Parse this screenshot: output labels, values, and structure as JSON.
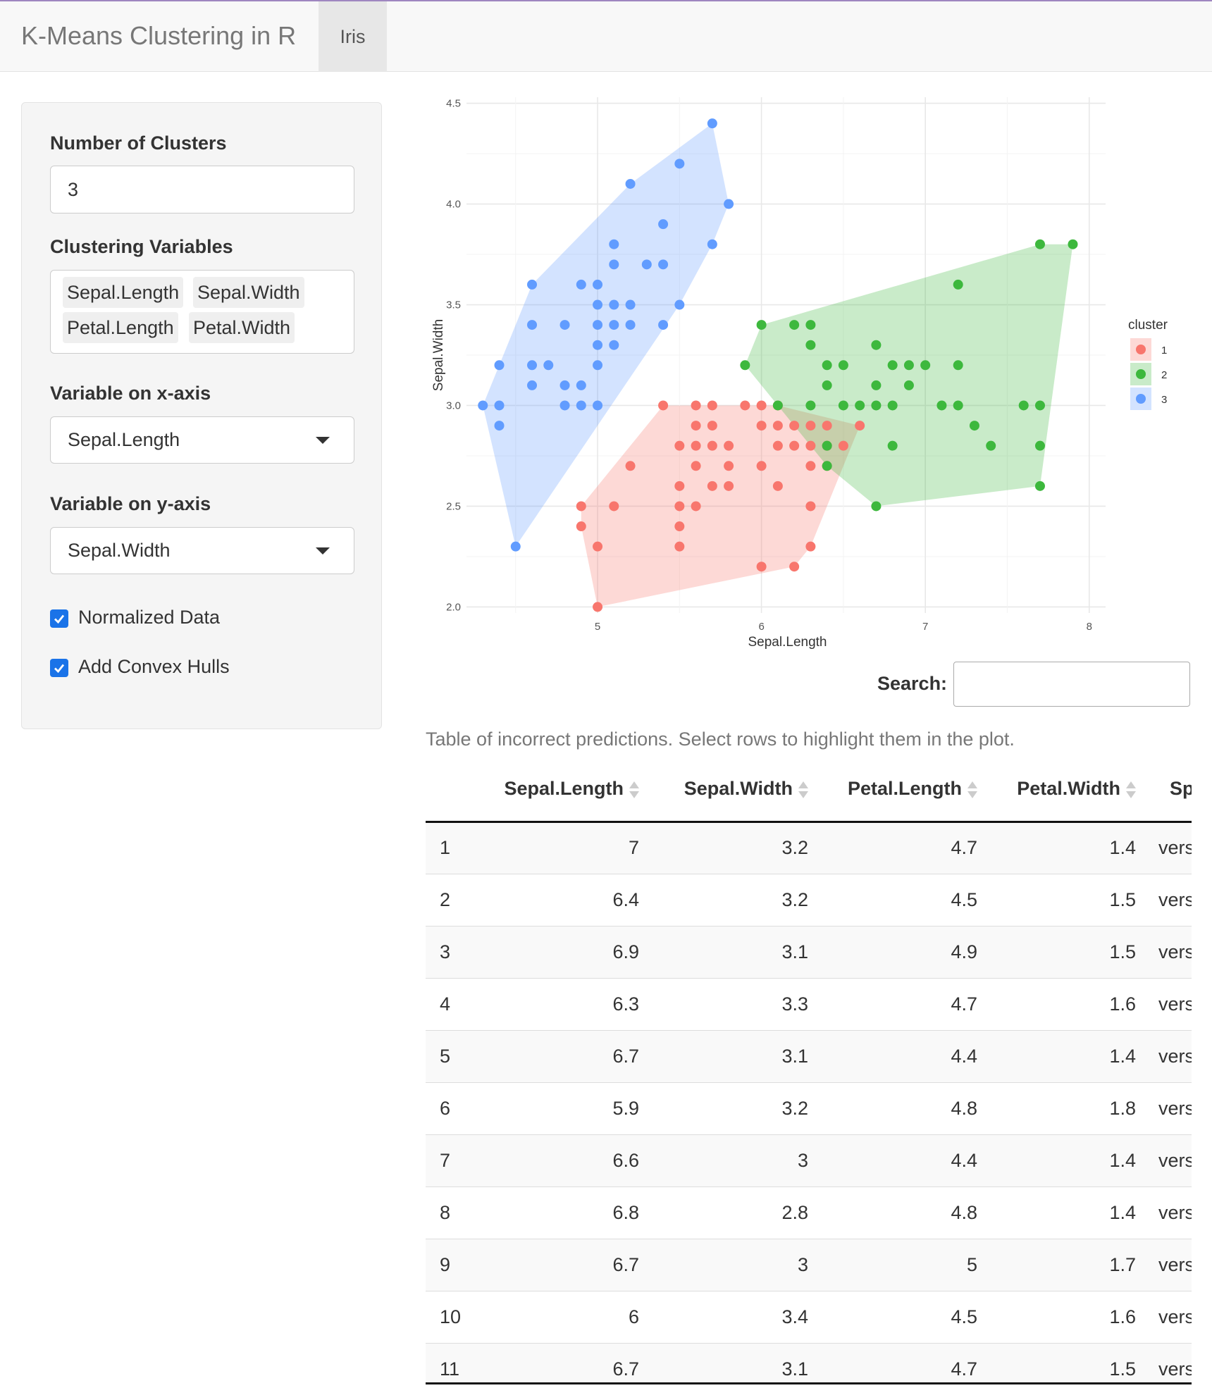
{
  "navbar": {
    "title": "K-Means Clustering in R",
    "tab": "Iris"
  },
  "sidebar": {
    "num_clusters_label": "Number of Clusters",
    "num_clusters_value": "3",
    "vars_label": "Clustering Variables",
    "vars": [
      "Sepal.Length",
      "Sepal.Width",
      "Petal.Length",
      "Petal.Width"
    ],
    "x_label": "Variable on x-axis",
    "x_value": "Sepal.Length",
    "y_label": "Variable on y-axis",
    "y_value": "Sepal.Width",
    "normalized_label": "Normalized Data",
    "normalized_checked": true,
    "hulls_label": "Add Convex Hulls",
    "hulls_checked": true
  },
  "colors": {
    "cluster1": "#F8766D",
    "cluster2": "#3DB83D",
    "cluster3": "#619CFF",
    "checkbox": "#1a73e8"
  },
  "search": {
    "label": "Search:",
    "placeholder": ""
  },
  "table": {
    "caption": "Table of incorrect predictions. Select rows to highlight them in the plot.",
    "columns": [
      "",
      "Sepal.Length",
      "Sepal.Width",
      "Petal.Length",
      "Petal.Width",
      "Sp"
    ],
    "rows": [
      [
        "1",
        "7",
        "3.2",
        "4.7",
        "1.4",
        "vers"
      ],
      [
        "2",
        "6.4",
        "3.2",
        "4.5",
        "1.5",
        "vers"
      ],
      [
        "3",
        "6.9",
        "3.1",
        "4.9",
        "1.5",
        "vers"
      ],
      [
        "4",
        "6.3",
        "3.3",
        "4.7",
        "1.6",
        "vers"
      ],
      [
        "5",
        "6.7",
        "3.1",
        "4.4",
        "1.4",
        "vers"
      ],
      [
        "6",
        "5.9",
        "3.2",
        "4.8",
        "1.8",
        "vers"
      ],
      [
        "7",
        "6.6",
        "3",
        "4.4",
        "1.4",
        "vers"
      ],
      [
        "8",
        "6.8",
        "2.8",
        "4.8",
        "1.4",
        "vers"
      ],
      [
        "9",
        "6.7",
        "3",
        "5",
        "1.7",
        "vers"
      ],
      [
        "10",
        "6",
        "3.4",
        "4.5",
        "1.6",
        "vers"
      ],
      [
        "11",
        "6.7",
        "3.1",
        "4.7",
        "1.5",
        "vers"
      ]
    ]
  },
  "chart_data": {
    "type": "scatter",
    "xlabel": "Sepal.Length",
    "ylabel": "Sepal.Width",
    "xlim": [
      4.3,
      8.0
    ],
    "ylim": [
      2.0,
      4.4
    ],
    "x_ticks": [
      5,
      6,
      7,
      8
    ],
    "y_ticks": [
      2.0,
      2.5,
      3.0,
      3.5,
      4.0,
      4.5
    ],
    "y_tick_labels": [
      "2.0",
      "2.5",
      "3.0",
      "3.5",
      "4.0",
      "4.5"
    ],
    "grid": true,
    "convex_hulls": true,
    "legend": {
      "title": "cluster",
      "position": "right",
      "entries": [
        "1",
        "2",
        "3"
      ]
    },
    "series": [
      {
        "name": "1",
        "points": [
          [
            4.9,
            2.5
          ],
          [
            4.9,
            2.4
          ],
          [
            5.0,
            2.3
          ],
          [
            5.0,
            2.0
          ],
          [
            5.1,
            2.5
          ],
          [
            5.2,
            2.7
          ],
          [
            5.4,
            3.0
          ],
          [
            5.5,
            2.3
          ],
          [
            5.5,
            2.4
          ],
          [
            5.5,
            2.5
          ],
          [
            5.5,
            2.6
          ],
          [
            5.5,
            2.8
          ],
          [
            5.6,
            2.5
          ],
          [
            5.6,
            2.7
          ],
          [
            5.6,
            2.8
          ],
          [
            5.6,
            2.9
          ],
          [
            5.6,
            3.0
          ],
          [
            5.7,
            2.6
          ],
          [
            5.7,
            2.8
          ],
          [
            5.7,
            2.9
          ],
          [
            5.7,
            3.0
          ],
          [
            5.8,
            2.6
          ],
          [
            5.8,
            2.7
          ],
          [
            5.8,
            2.8
          ],
          [
            5.9,
            3.0
          ],
          [
            6.0,
            2.2
          ],
          [
            6.0,
            2.7
          ],
          [
            6.0,
            2.9
          ],
          [
            6.0,
            3.0
          ],
          [
            6.1,
            2.6
          ],
          [
            6.1,
            2.8
          ],
          [
            6.1,
            2.9
          ],
          [
            6.1,
            3.0
          ],
          [
            6.2,
            2.2
          ],
          [
            6.2,
            2.8
          ],
          [
            6.2,
            2.9
          ],
          [
            6.3,
            2.3
          ],
          [
            6.3,
            2.5
          ],
          [
            6.3,
            2.7
          ],
          [
            6.3,
            2.8
          ],
          [
            6.3,
            2.9
          ],
          [
            6.4,
            2.7
          ],
          [
            6.4,
            2.8
          ],
          [
            6.4,
            2.9
          ],
          [
            6.5,
            2.8
          ],
          [
            6.6,
            2.9
          ]
        ]
      },
      {
        "name": "2",
        "points": [
          [
            5.9,
            3.2
          ],
          [
            6.0,
            3.4
          ],
          [
            6.1,
            3.0
          ],
          [
            6.2,
            3.4
          ],
          [
            6.3,
            3.4
          ],
          [
            6.3,
            3.3
          ],
          [
            6.3,
            3.0
          ],
          [
            6.4,
            3.2
          ],
          [
            6.4,
            3.1
          ],
          [
            6.4,
            2.8
          ],
          [
            6.4,
            2.7
          ],
          [
            6.5,
            3.2
          ],
          [
            6.5,
            3.0
          ],
          [
            6.6,
            3.0
          ],
          [
            6.7,
            3.3
          ],
          [
            6.7,
            3.1
          ],
          [
            6.7,
            3.0
          ],
          [
            6.7,
            2.5
          ],
          [
            6.8,
            3.2
          ],
          [
            6.8,
            3.0
          ],
          [
            6.8,
            2.8
          ],
          [
            6.9,
            3.2
          ],
          [
            6.9,
            3.1
          ],
          [
            7.0,
            3.2
          ],
          [
            7.1,
            3.0
          ],
          [
            7.2,
            3.6
          ],
          [
            7.2,
            3.2
          ],
          [
            7.2,
            3.0
          ],
          [
            7.3,
            2.9
          ],
          [
            7.4,
            2.8
          ],
          [
            7.6,
            3.0
          ],
          [
            7.7,
            3.8
          ],
          [
            7.7,
            3.0
          ],
          [
            7.7,
            2.8
          ],
          [
            7.7,
            2.6
          ],
          [
            7.9,
            3.8
          ]
        ]
      },
      {
        "name": "3",
        "points": [
          [
            4.3,
            3.0
          ],
          [
            4.4,
            2.9
          ],
          [
            4.4,
            3.0
          ],
          [
            4.4,
            3.2
          ],
          [
            4.5,
            2.3
          ],
          [
            4.6,
            3.1
          ],
          [
            4.6,
            3.2
          ],
          [
            4.6,
            3.4
          ],
          [
            4.6,
            3.6
          ],
          [
            4.7,
            3.2
          ],
          [
            4.8,
            3.0
          ],
          [
            4.8,
            3.1
          ],
          [
            4.8,
            3.4
          ],
          [
            4.9,
            3.0
          ],
          [
            4.9,
            3.1
          ],
          [
            4.9,
            3.6
          ],
          [
            5.0,
            3.0
          ],
          [
            5.0,
            3.2
          ],
          [
            5.0,
            3.3
          ],
          [
            5.0,
            3.4
          ],
          [
            5.0,
            3.5
          ],
          [
            5.0,
            3.6
          ],
          [
            5.1,
            3.3
          ],
          [
            5.1,
            3.4
          ],
          [
            5.1,
            3.5
          ],
          [
            5.1,
            3.7
          ],
          [
            5.1,
            3.8
          ],
          [
            5.2,
            3.4
          ],
          [
            5.2,
            3.5
          ],
          [
            5.2,
            4.1
          ],
          [
            5.3,
            3.7
          ],
          [
            5.4,
            3.4
          ],
          [
            5.4,
            3.7
          ],
          [
            5.4,
            3.9
          ],
          [
            5.5,
            3.5
          ],
          [
            5.5,
            4.2
          ],
          [
            5.7,
            3.8
          ],
          [
            5.7,
            4.4
          ],
          [
            5.8,
            4.0
          ]
        ]
      }
    ]
  }
}
